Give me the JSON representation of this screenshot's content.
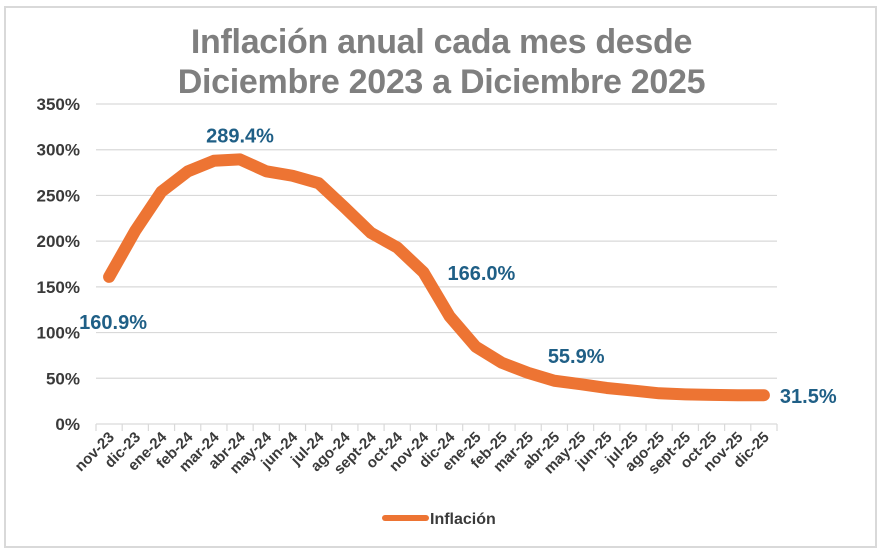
{
  "chart_data": {
    "type": "line",
    "title_lines": [
      "Inflación anual cada mes desde",
      "Diciembre 2023 a Diciembre 2025"
    ],
    "xlabel": "",
    "ylabel": "",
    "ylim": [
      0,
      350
    ],
    "y_ticks": [
      0,
      50,
      100,
      150,
      200,
      250,
      300,
      350
    ],
    "y_tick_labels": [
      "0%",
      "50%",
      "100%",
      "150%",
      "200%",
      "250%",
      "300%",
      "350%"
    ],
    "grid": true,
    "legend_position": "bottom",
    "categories": [
      "nov-23",
      "dic-23",
      "ene-24",
      "feb-24",
      "mar-24",
      "abr-24",
      "may-24",
      "jun-24",
      "jul-24",
      "ago-24",
      "sept-24",
      "oct-24",
      "nov-24",
      "dic-24",
      "ene-25",
      "feb-25",
      "mar-25",
      "abr-25",
      "may-25",
      "jun-25",
      "jul-25",
      "ago-25",
      "sept-25",
      "oct-25",
      "nov-25",
      "dic-25"
    ],
    "series": [
      {
        "name": "Inflación",
        "color": "#ed7433",
        "values": [
          160.9,
          211.4,
          254.2,
          276.2,
          287.9,
          289.4,
          276.4,
          271.5,
          263.4,
          236.7,
          209.0,
          193.0,
          166.0,
          117.8,
          84.5,
          66.9,
          55.9,
          47.3,
          43.5,
          39.4,
          36.6,
          33.6,
          32.4,
          31.8,
          31.4,
          31.5
        ]
      }
    ],
    "data_labels": [
      {
        "category": "nov-23",
        "text": "160.9%"
      },
      {
        "category": "abr-24",
        "text": "289.4%"
      },
      {
        "category": "nov-24",
        "text": "166.0%"
      },
      {
        "category": "mar-25",
        "text": "55.9%"
      },
      {
        "category": "dic-25",
        "text": "31.5%"
      }
    ],
    "label_color": "#1f5f86",
    "title_color": "#7f7f7f"
  }
}
